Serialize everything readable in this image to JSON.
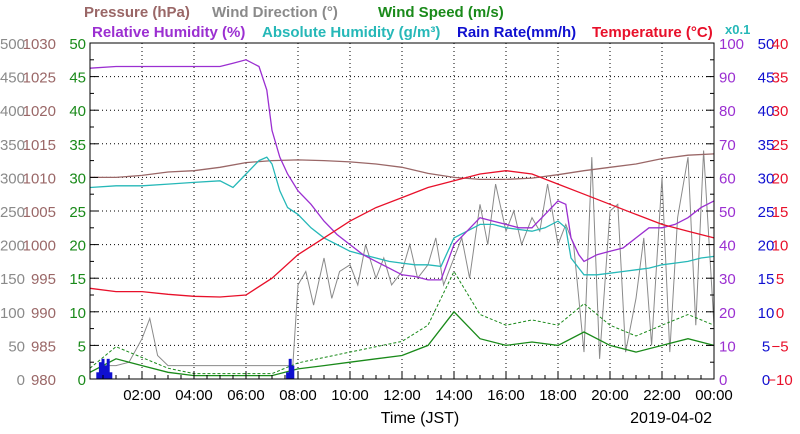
{
  "chart_data": {
    "type": "line",
    "date": "2019-04-02",
    "xlabel": "Time (JST)",
    "x_ticks": [
      "02:00",
      "04:00",
      "06:00",
      "08:00",
      "10:00",
      "12:00",
      "14:00",
      "16:00",
      "18:00",
      "20:00",
      "22:00",
      "00:00"
    ],
    "xlim": [
      0,
      24
    ],
    "grid": true,
    "legend_placement": "top",
    "multiplier_note": "x0.1",
    "legend": [
      {
        "text": "Pressure (hPa)",
        "color": "#9a6767"
      },
      {
        "text": "Wind Direction (°)",
        "color": "#8a8a8a"
      },
      {
        "text": "Wind Speed (m/s)",
        "color": "#1a8a1a"
      },
      {
        "text": "Relative Humidity (%)",
        "color": "#9b2fd1"
      },
      {
        "text": "Absolute Humidity (g/m³)",
        "color": "#26b8b8"
      },
      {
        "text": "Rain Rate(mm/h)",
        "color": "#1010d0"
      },
      {
        "text": "Temperature (°C)",
        "color": "#e8102a"
      }
    ],
    "axes": [
      {
        "name": "Pressure (hPa)",
        "color": "#9a6767",
        "side": "left",
        "ylim": [
          980,
          1030
        ],
        "ticks": [
          "980",
          "985",
          "990",
          "995",
          "1000",
          "1005",
          "1010",
          "1015",
          "1020",
          "1025",
          "1030"
        ]
      },
      {
        "name": "Wind Direction (°)",
        "color": "#8a8a8a",
        "side": "left",
        "ylim": [
          0,
          500
        ],
        "ticks": [
          "0",
          "50",
          "100",
          "150",
          "200",
          "250",
          "300",
          "350",
          "400",
          "450",
          "500"
        ]
      },
      {
        "name": "Wind Speed (m/s)",
        "color": "#1a8a1a",
        "side": "left",
        "ylim": [
          0,
          50
        ],
        "ticks": [
          "0",
          "5",
          "10",
          "15",
          "20",
          "25",
          "30",
          "35",
          "40",
          "45",
          "50"
        ]
      },
      {
        "name": "Humidity",
        "color": "#9b2fd1",
        "side": "right",
        "ylim": [
          0,
          100
        ],
        "ticks": [
          "0",
          "10",
          "20",
          "30",
          "40",
          "50",
          "60",
          "70",
          "80",
          "90",
          "100"
        ]
      },
      {
        "name": "Rain Rate(mm/h)",
        "color": "#1010d0",
        "side": "right",
        "ylim": [
          0,
          50
        ],
        "ticks": [
          "0",
          "5",
          "10",
          "15",
          "20",
          "25",
          "30",
          "35",
          "40",
          "45",
          "50"
        ]
      },
      {
        "name": "Temperature (°C)",
        "color": "#e8102a",
        "side": "right",
        "ylim": [
          -10,
          40
        ],
        "ticks": [
          "−10",
          "−5",
          "0",
          "5",
          "10",
          "15",
          "20",
          "25",
          "30",
          "35",
          "40"
        ]
      }
    ],
    "series": [
      {
        "name": "Pressure (hPa)",
        "color": "#9a6767",
        "axis": 0,
        "x": [
          0,
          1,
          2,
          3,
          4,
          5,
          6,
          7,
          8,
          9,
          10,
          11,
          12,
          13,
          14,
          15,
          16,
          17,
          18,
          19,
          20,
          21,
          22,
          23,
          24
        ],
        "y": [
          1010,
          1010,
          1010.3,
          1010.8,
          1011,
          1011.5,
          1012.2,
          1012.5,
          1012.6,
          1012.5,
          1012.3,
          1012,
          1011.5,
          1010.6,
          1010,
          1009.7,
          1009.7,
          1009.9,
          1010.4,
          1011,
          1011.5,
          1012,
          1012.8,
          1013.3,
          1013.5
        ]
      },
      {
        "name": "Relative Humidity (%)",
        "color": "#9b2fd1",
        "axis": 3,
        "x": [
          0,
          1,
          2,
          3,
          4,
          5,
          5.5,
          6,
          6.5,
          6.8,
          7,
          7.3,
          7.6,
          8,
          8.5,
          9,
          9.5,
          10,
          10.5,
          11,
          11.5,
          12,
          12.5,
          13,
          13.5,
          14,
          14.5,
          15,
          15.5,
          16,
          16.5,
          17,
          17.5,
          18,
          18.3,
          18.5,
          18.8,
          19,
          19.5,
          20,
          20.5,
          21,
          21.5,
          22,
          22.5,
          23,
          23.5,
          24
        ],
        "y": [
          92.5,
          93,
          93,
          93,
          93,
          93,
          94,
          95,
          93,
          86,
          74,
          66,
          61,
          56,
          52,
          47,
          43,
          40,
          37,
          35,
          33,
          31,
          30.5,
          29.5,
          29.5,
          40,
          44,
          48,
          47,
          46,
          45,
          45,
          49,
          53,
          52,
          42,
          37,
          35,
          37,
          38,
          39,
          42,
          45,
          45,
          46,
          48,
          51,
          53
        ]
      },
      {
        "name": "Absolute Humidity (g/m³)",
        "color": "#26b8b8",
        "axis": 3,
        "x": [
          0,
          1,
          2,
          3,
          4,
          5,
          5.5,
          6,
          6.5,
          6.8,
          7,
          7.3,
          7.6,
          8,
          8.5,
          9,
          9.5,
          10,
          10.5,
          11,
          11.5,
          12,
          12.5,
          13,
          13.5,
          14,
          14.5,
          15,
          15.5,
          16,
          16.5,
          17,
          17.5,
          18,
          18.3,
          18.5,
          18.8,
          19,
          19.5,
          20,
          20.5,
          21,
          21.5,
          22,
          22.5,
          23,
          23.5,
          24
        ],
        "y": [
          57,
          57.5,
          57.5,
          58,
          58.5,
          59,
          57,
          61,
          65,
          66,
          64,
          56,
          51,
          49,
          45,
          42,
          40,
          38,
          37,
          36,
          35,
          34.5,
          34,
          34,
          33.5,
          42,
          44,
          46,
          46,
          45,
          44.5,
          44,
          45,
          47,
          45,
          36,
          33,
          31,
          31,
          31.5,
          32,
          32.5,
          33,
          34,
          34.5,
          35,
          36,
          36.5
        ]
      },
      {
        "name": "Temperature (°C)",
        "color": "#e8102a",
        "axis": 5,
        "x": [
          0,
          1,
          2,
          3,
          4,
          5,
          6,
          7,
          8,
          9,
          10,
          11,
          12,
          13,
          14,
          15,
          16,
          17,
          18,
          19,
          20,
          21,
          22,
          23,
          24
        ],
        "y": [
          3.5,
          3,
          3,
          2.6,
          2.3,
          2.2,
          2.5,
          5,
          8.5,
          11,
          13.5,
          15.5,
          17,
          18.5,
          19.5,
          20.5,
          21,
          20.5,
          19,
          17.5,
          16,
          14.5,
          13,
          12,
          11
        ]
      },
      {
        "name": "Wind Direction (°)",
        "color": "#8a8a8a",
        "axis": 1,
        "x": [
          0,
          0.5,
          1,
          1.5,
          2,
          2.3,
          2.6,
          3,
          4,
          5,
          6,
          7,
          7.5,
          7.8,
          8,
          8.3,
          8.6,
          9,
          9.3,
          9.6,
          10,
          10.3,
          10.6,
          11,
          11.3,
          11.6,
          12,
          12.3,
          12.6,
          13,
          13.3,
          13.6,
          14,
          14.3,
          14.6,
          15,
          15.3,
          15.6,
          16,
          16.3,
          16.6,
          17,
          17.3,
          17.6,
          18,
          18.3,
          18.6,
          19,
          19.3,
          19.6,
          20,
          20.3,
          20.6,
          21,
          21.3,
          21.6,
          22,
          22.3,
          22.6,
          23,
          23.3,
          23.6,
          24
        ],
        "y": [
          10,
          20,
          20,
          25,
          60,
          90,
          35,
          20,
          20,
          20,
          20,
          20,
          20,
          20,
          140,
          160,
          110,
          180,
          120,
          160,
          170,
          140,
          200,
          150,
          180,
          140,
          160,
          200,
          150,
          170,
          210,
          140,
          180,
          210,
          150,
          260,
          200,
          290,
          220,
          250,
          200,
          240,
          220,
          290,
          200,
          230,
          200,
          40,
          330,
          30,
          250,
          260,
          40,
          120,
          210,
          50,
          300,
          40,
          240,
          330,
          80,
          340,
          80
        ]
      },
      {
        "name": "Wind Speed (m/s)",
        "color": "#1a8a1a",
        "axis": 2,
        "x": [
          0,
          1,
          2,
          3,
          4,
          5,
          6,
          7,
          8,
          9,
          10,
          11,
          12,
          13,
          14,
          15,
          16,
          17,
          18,
          19,
          20,
          21,
          22,
          23,
          24
        ],
        "y": [
          1,
          3,
          2,
          1,
          0.5,
          0.5,
          0.5,
          0.5,
          1.5,
          2,
          2.5,
          3,
          3.5,
          5,
          10,
          6,
          5,
          5.5,
          5,
          7,
          5,
          4,
          5,
          6,
          5
        ]
      },
      {
        "name": "Rain Rate(mm/h)",
        "color": "#1010d0",
        "axis": 4,
        "x": [
          0.3,
          0.4,
          0.5,
          0.6,
          0.7,
          0.8,
          7.6,
          7.7,
          7.8
        ],
        "y": [
          1,
          2.5,
          3,
          2,
          3,
          1,
          1,
          3,
          2
        ]
      }
    ]
  }
}
